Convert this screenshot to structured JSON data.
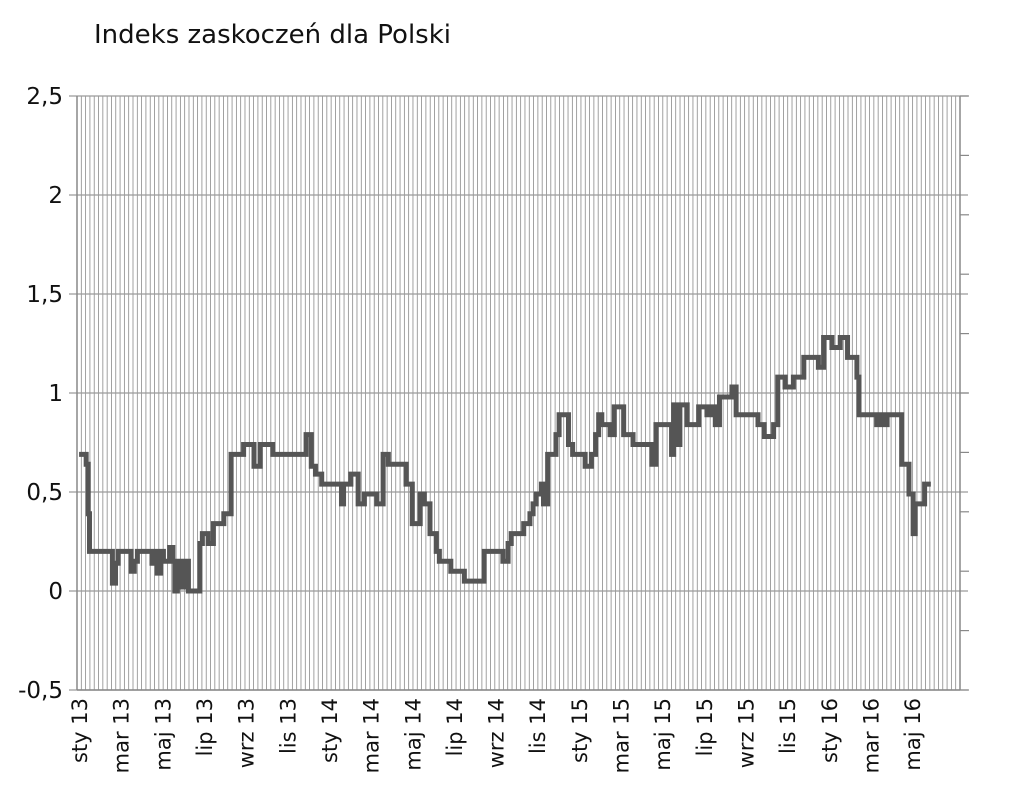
{
  "chart_data": {
    "type": "line",
    "title": "Indeks zaskoczeń dla Polski",
    "xlabel": "",
    "ylabel": "",
    "ylim": [
      -0.5,
      2.5
    ],
    "yticks": [
      {
        "value": 2.5,
        "label": "2,5"
      },
      {
        "value": 2,
        "label": "2"
      },
      {
        "value": 1.5,
        "label": "1,5"
      },
      {
        "value": 1,
        "label": "1"
      },
      {
        "value": 0.5,
        "label": "0,5"
      },
      {
        "value": 0,
        "label": "0"
      },
      {
        "value": -0.5,
        "label": "-0,5"
      }
    ],
    "xticks": [
      {
        "value": 0,
        "label": "sty 13"
      },
      {
        "value": 2,
        "label": "mar 13"
      },
      {
        "value": 4,
        "label": "maj 13"
      },
      {
        "value": 6,
        "label": "lip 13"
      },
      {
        "value": 8,
        "label": "wrz 13"
      },
      {
        "value": 10,
        "label": "lis 13"
      },
      {
        "value": 12,
        "label": "sty 14"
      },
      {
        "value": 14,
        "label": "mar 14"
      },
      {
        "value": 16,
        "label": "maj 14"
      },
      {
        "value": 18,
        "label": "lip 14"
      },
      {
        "value": 20,
        "label": "wrz 14"
      },
      {
        "value": 22,
        "label": "lis 14"
      },
      {
        "value": 24,
        "label": "sty 15"
      },
      {
        "value": 26,
        "label": "mar 15"
      },
      {
        "value": 28,
        "label": "maj 15"
      },
      {
        "value": 30,
        "label": "lip 15"
      },
      {
        "value": 32,
        "label": "wrz 15"
      },
      {
        "value": 34,
        "label": "lis 15"
      },
      {
        "value": 36,
        "label": "sty 16"
      },
      {
        "value": 38,
        "label": "mar 16"
      },
      {
        "value": 40,
        "label": "maj 16"
      }
    ],
    "xlim": [
      -0.1,
      42.3
    ],
    "grid": true,
    "legend": "none",
    "series": [
      {
        "color": "#555555",
        "step": true,
        "x": [
          0,
          0.28,
          0.34,
          0.44,
          0.5,
          0.64,
          0.76,
          0.8,
          0.86,
          0.9,
          0.98,
          1.2,
          1.4,
          1.5,
          1.6,
          1.75,
          1.88,
          2.06,
          2.2,
          2.35,
          2.5,
          2.65,
          2.8,
          2.9,
          3.0,
          3.2,
          3.4,
          3.5,
          3.6,
          3.75,
          3.92,
          4.05,
          4.2,
          4.35,
          4.5,
          4.6,
          4.72,
          4.84,
          4.96,
          5.1,
          5.25,
          5.38,
          5.5,
          5.6,
          5.8,
          5.92,
          6.1,
          6.2,
          6.45,
          6.58,
          6.75,
          6.95,
          7.1,
          7.3,
          7.5,
          7.9,
          8.4,
          8.7,
          8.78,
          8.95,
          9.1,
          9.3,
          9.55,
          9.8,
          10.3,
          10.9,
          11.15,
          11.35,
          11.55,
          11.65,
          11.85,
          12.2,
          12.6,
          12.7,
          13.05,
          13.2,
          13.4,
          13.55,
          13.7,
          14.0,
          14.3,
          14.6,
          14.85,
          15.0,
          15.1,
          15.3,
          15.7,
          16.0,
          16.15,
          16.38,
          16.58,
          16.72,
          16.85,
          17.15,
          17.3,
          17.55,
          17.85,
          18.2,
          18.5,
          18.6,
          18.8,
          19.2,
          19.45,
          19.65,
          20.35,
          20.6,
          20.75,
          20.95,
          21.35,
          21.65,
          21.8,
          21.95,
          22.05,
          22.2,
          22.3,
          22.5,
          22.62,
          22.75,
          22.9,
          23.05,
          23.2,
          23.3,
          23.5,
          23.7,
          23.85,
          24.1,
          24.3,
          24.6,
          24.8,
          24.95,
          25.1,
          25.25,
          25.5,
          25.7,
          25.85,
          26.15,
          26.6,
          26.8,
          27.1,
          27.5,
          27.7,
          27.9,
          28.35,
          28.45,
          28.55,
          28.7,
          28.85,
          29.0,
          29.2,
          29.5,
          29.75,
          30.15,
          30.35,
          30.55,
          30.75,
          30.95,
          31.35,
          31.55,
          31.8,
          32.1,
          32.3,
          32.6,
          32.9,
          33.05,
          33.35,
          33.55,
          33.9,
          34.3,
          34.5,
          34.8,
          35.1,
          35.5,
          35.75,
          35.9,
          36.15,
          36.3,
          36.4,
          36.55,
          36.9,
          37.15,
          37.35,
          37.45,
          37.55,
          37.8,
          38.0,
          38.3,
          38.5,
          38.65,
          38.8,
          38.95,
          39.2,
          39.5,
          39.65,
          39.85,
          39.95,
          40.05,
          40.15,
          40.3,
          40.6,
          40.9
        ],
        "values": [
          0.69,
          0.69,
          0.64,
          0.39,
          0.2,
          0.2,
          0.2,
          0.2,
          0.2,
          0.2,
          0.2,
          0.2,
          0.2,
          0.2,
          0.04,
          0.14,
          0.2,
          0.2,
          0.2,
          0.2,
          0.1,
          0.15,
          0.2,
          0.2,
          0.2,
          0.2,
          0.2,
          0.14,
          0.2,
          0.09,
          0.2,
          0.15,
          0.15,
          0.22,
          0.15,
          0.0,
          0.15,
          0.15,
          0.02,
          0.15,
          0.0,
          0.0,
          0.0,
          0.0,
          0.24,
          0.29,
          0.29,
          0.24,
          0.34,
          0.34,
          0.34,
          0.39,
          0.39,
          0.69,
          0.69,
          0.74,
          0.63,
          0.74,
          0.74,
          0.74,
          0.74,
          0.69,
          0.69,
          0.69,
          0.69,
          0.79,
          0.63,
          0.59,
          0.59,
          0.54,
          0.54,
          0.54,
          0.44,
          0.54,
          0.59,
          0.59,
          0.44,
          0.44,
          0.49,
          0.49,
          0.44,
          0.69,
          0.64,
          0.64,
          0.64,
          0.64,
          0.54,
          0.34,
          0.34,
          0.49,
          0.44,
          0.44,
          0.29,
          0.2,
          0.15,
          0.15,
          0.1,
          0.1,
          0.05,
          0.05,
          0.05,
          0.05,
          0.2,
          0.2,
          0.15,
          0.24,
          0.29,
          0.29,
          0.34,
          0.39,
          0.44,
          0.49,
          0.49,
          0.54,
          0.44,
          0.69,
          0.69,
          0.69,
          0.79,
          0.89,
          0.89,
          0.89,
          0.74,
          0.69,
          0.69,
          0.69,
          0.63,
          0.69,
          0.79,
          0.89,
          0.84,
          0.84,
          0.79,
          0.93,
          0.93,
          0.79,
          0.74,
          0.74,
          0.74,
          0.64,
          0.84,
          0.84,
          0.84,
          0.69,
          0.94,
          0.74,
          0.94,
          0.94,
          0.84,
          0.84,
          0.93,
          0.89,
          0.93,
          0.84,
          0.98,
          0.98,
          1.03,
          0.89,
          0.89,
          0.89,
          0.89,
          0.84,
          0.78,
          0.78,
          0.84,
          1.08,
          1.03,
          1.08,
          1.08,
          1.18,
          1.18,
          1.13,
          1.28,
          1.28,
          1.23,
          1.23,
          1.23,
          1.28,
          1.18,
          1.18,
          1.08,
          0.89,
          0.89,
          0.89,
          0.89,
          0.84,
          0.89,
          0.84,
          0.89,
          0.89,
          0.89,
          0.64,
          0.64,
          0.49,
          0.49,
          0.29,
          0.44,
          0.44,
          0.54,
          0.54
        ]
      }
    ]
  }
}
